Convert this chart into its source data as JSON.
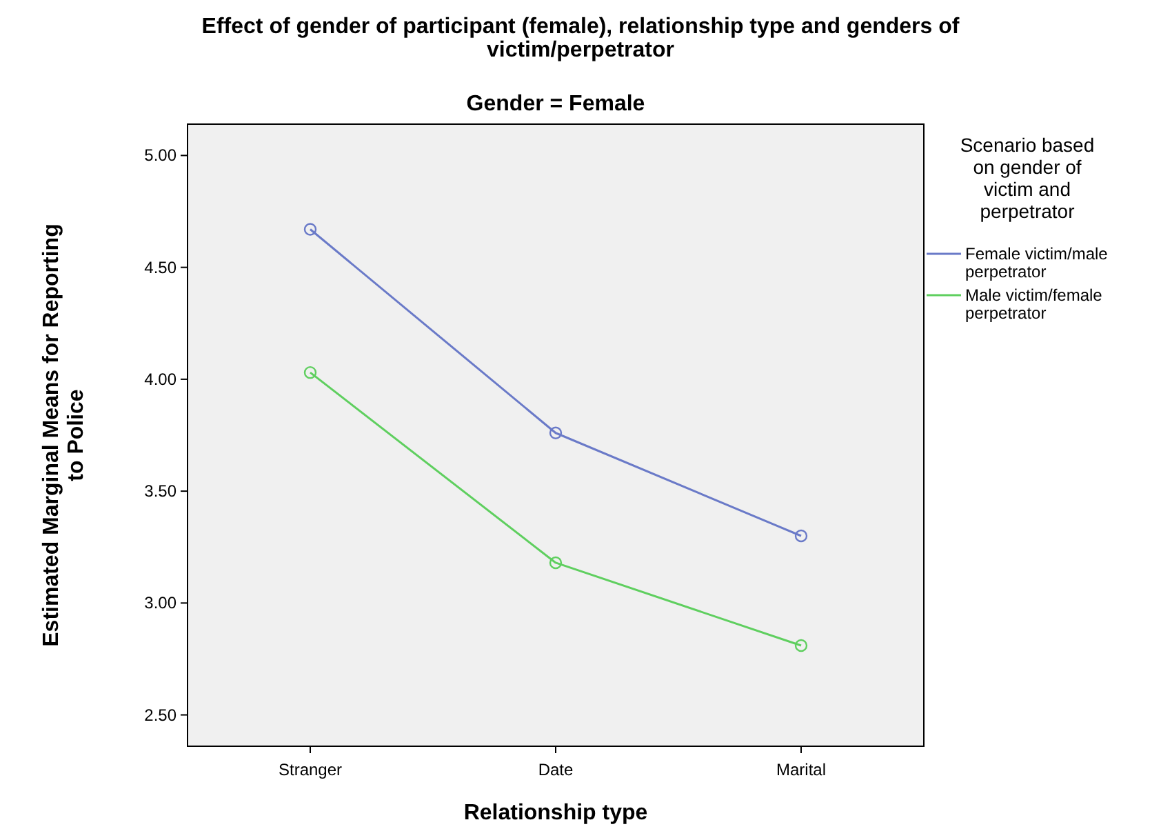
{
  "chart_data": {
    "type": "line",
    "title": "Effect of gender of participant (female), relationship type and genders of victim/perpetrator",
    "subtitle": "Gender = Female",
    "xlabel": "Relationship type",
    "ylabel": "Estimated Marginal Means for Reporting to Police",
    "legend_title": "Scenario based on gender of victim and perpetrator",
    "categories": [
      "Stranger",
      "Date",
      "Marital"
    ],
    "series": [
      {
        "name": "Female victim/male perpetrator",
        "color": "#6a7ac8",
        "values": [
          4.67,
          3.76,
          3.3
        ]
      },
      {
        "name": "Male victim/female perpetrator",
        "color": "#5fcf5f",
        "values": [
          4.03,
          3.18,
          2.81
        ]
      }
    ],
    "ylim": [
      2.36,
      5.14
    ],
    "yticks": [
      {
        "value": 2.5,
        "label": "2.50"
      },
      {
        "value": 3,
        "label": "3.00"
      },
      {
        "value": 3.5,
        "label": "3.50"
      },
      {
        "value": 4,
        "label": "4.00"
      },
      {
        "value": 4.5,
        "label": "4.50"
      },
      {
        "value": 5,
        "label": "5.00"
      }
    ],
    "grid": false,
    "legend": "right",
    "marker": "circle",
    "line_style": "solid"
  }
}
